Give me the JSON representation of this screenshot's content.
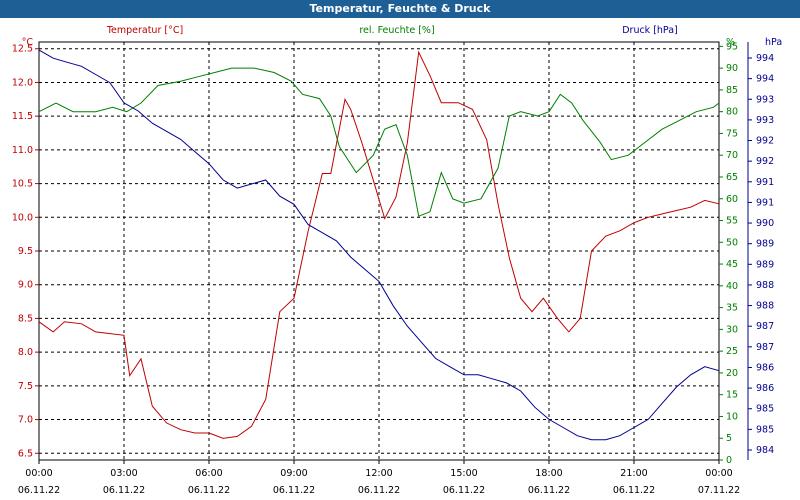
{
  "chart_data": {
    "type": "line",
    "title": "Temperatur, Feuchte & Druck",
    "grid": true,
    "x_ticks": [
      {
        "time": "00:00",
        "date": "06.11.22"
      },
      {
        "time": "03:00",
        "date": "06.11.22"
      },
      {
        "time": "06:00",
        "date": "06.11.22"
      },
      {
        "time": "09:00",
        "date": "06.11.22"
      },
      {
        "time": "12:00",
        "date": "06.11.22"
      },
      {
        "time": "15:00",
        "date": "06.11.22"
      },
      {
        "time": "18:00",
        "date": "06.11.22"
      },
      {
        "time": "21:00",
        "date": "06.11.22"
      },
      {
        "time": "00:00",
        "date": "07.11.22"
      }
    ],
    "x_range_hours": [
      0,
      24
    ],
    "axes": {
      "temperature": {
        "label": "Temperatur [°C]",
        "unit": "°C",
        "color": "#c00000",
        "min": 6.4,
        "max": 12.6,
        "ticks": [
          "6.5",
          "7.0",
          "7.5",
          "8.0",
          "8.5",
          "9.0",
          "9.5",
          "10.0",
          "10.5",
          "11.0",
          "11.5",
          "12.0",
          "12.5"
        ]
      },
      "humidity": {
        "label": "rel. Feuchte [%]",
        "unit": "%",
        "color": "#008000",
        "min": 0,
        "max": 96,
        "ticks": [
          "0",
          "5",
          "10",
          "15",
          "20",
          "25",
          "30",
          "35",
          "40",
          "45",
          "50",
          "55",
          "60",
          "65",
          "70",
          "75",
          "80",
          "85",
          "90",
          "95"
        ]
      },
      "pressure": {
        "label": "Druck [hPa]",
        "unit": "hPa",
        "color": "#000090",
        "min": 984.2,
        "max": 994.5,
        "ticks": [
          "984",
          "985",
          "985",
          "986",
          "986",
          "987",
          "987",
          "988",
          "988",
          "989",
          "989",
          "990",
          "991",
          "991",
          "992",
          "992",
          "993",
          "993",
          "994",
          "994"
        ]
      }
    },
    "series": [
      {
        "name": "Temperatur [°C]",
        "axis": "temperature",
        "color": "#c00000",
        "x": [
          0,
          0.5,
          0.9,
          1.5,
          2,
          2.4,
          3,
          3.2,
          3.6,
          4,
          4.5,
          5,
          5.5,
          6,
          6.5,
          7,
          7.5,
          8,
          8.5,
          9,
          9.5,
          10,
          10.3,
          10.8,
          11,
          11.4,
          11.8,
          12.2,
          12.6,
          13,
          13.4,
          13.8,
          14.2,
          14.8,
          15.3,
          15.8,
          16.2,
          16.6,
          17,
          17.4,
          17.8,
          18.3,
          18.7,
          19.1,
          19.5,
          20,
          20.5,
          21,
          21.5,
          22,
          22.5,
          23,
          23.5,
          24
        ],
        "y": [
          8.45,
          8.3,
          8.45,
          8.42,
          8.3,
          8.28,
          8.25,
          7.65,
          7.9,
          7.2,
          6.95,
          6.85,
          6.8,
          6.8,
          6.72,
          6.75,
          6.9,
          7.3,
          8.6,
          8.8,
          9.8,
          10.65,
          10.65,
          11.75,
          11.6,
          11.1,
          10.55,
          9.98,
          10.3,
          11.1,
          12.45,
          12.1,
          11.7,
          11.7,
          11.6,
          11.15,
          10.2,
          9.4,
          8.8,
          8.6,
          8.8,
          8.5,
          8.3,
          8.5,
          9.5,
          9.72,
          9.8,
          9.92,
          10.0,
          10.05,
          10.1,
          10.15,
          10.25,
          10.2
        ]
      },
      {
        "name": "rel. Feuchte [%]",
        "axis": "humidity",
        "color": "#008000",
        "x": [
          0,
          0.6,
          1.2,
          2,
          2.6,
          3.1,
          3.6,
          4.2,
          5,
          5.6,
          6.2,
          6.8,
          7.6,
          8.3,
          8.9,
          9.3,
          9.9,
          10.3,
          10.6,
          11.2,
          11.8,
          12.2,
          12.6,
          13.0,
          13.4,
          13.8,
          14.2,
          14.6,
          15.0,
          15.6,
          16.2,
          16.6,
          17.0,
          17.6,
          18.0,
          18.4,
          18.8,
          19.2,
          19.8,
          20.2,
          20.8,
          21.4,
          22,
          22.6,
          23.2,
          23.8,
          24
        ],
        "y": [
          80,
          82,
          80,
          80,
          81,
          80,
          82,
          86,
          87,
          88,
          89,
          90,
          90,
          89,
          87,
          84,
          83,
          79,
          72,
          66,
          70,
          76,
          77,
          70,
          56,
          57,
          66,
          60,
          59,
          60,
          67,
          79,
          80,
          79,
          80,
          84,
          82,
          78,
          73,
          69,
          70,
          73,
          76,
          78,
          80,
          81,
          82
        ]
      },
      {
        "name": "Druck [hPa]",
        "axis": "pressure",
        "color": "#000090",
        "x": [
          0,
          0.5,
          1,
          1.5,
          2,
          2.5,
          3,
          3.5,
          4,
          4.5,
          5,
          5.5,
          6,
          6.5,
          7,
          7.5,
          8,
          8.5,
          9,
          9.5,
          10,
          10.5,
          11,
          11.5,
          12,
          12.5,
          13,
          13.5,
          14,
          14.5,
          15,
          15.5,
          16,
          16.5,
          17,
          17.5,
          18,
          18.5,
          19,
          19.5,
          20,
          20.5,
          21,
          21.5,
          22,
          22.5,
          23,
          23.5,
          24
        ],
        "y": [
          994.3,
          994.1,
          994.0,
          993.9,
          993.7,
          993.5,
          993.0,
          992.8,
          992.5,
          992.3,
          992.1,
          991.8,
          991.5,
          991.1,
          990.9,
          991.0,
          991.1,
          990.7,
          990.5,
          990.0,
          989.8,
          989.6,
          989.2,
          988.9,
          988.6,
          988.0,
          987.5,
          987.1,
          986.7,
          986.5,
          986.3,
          986.3,
          986.2,
          986.1,
          985.9,
          985.5,
          985.2,
          985.0,
          984.8,
          984.7,
          984.7,
          984.8,
          985.0,
          985.2,
          985.6,
          986.0,
          986.3,
          986.5,
          986.4
        ]
      }
    ]
  }
}
